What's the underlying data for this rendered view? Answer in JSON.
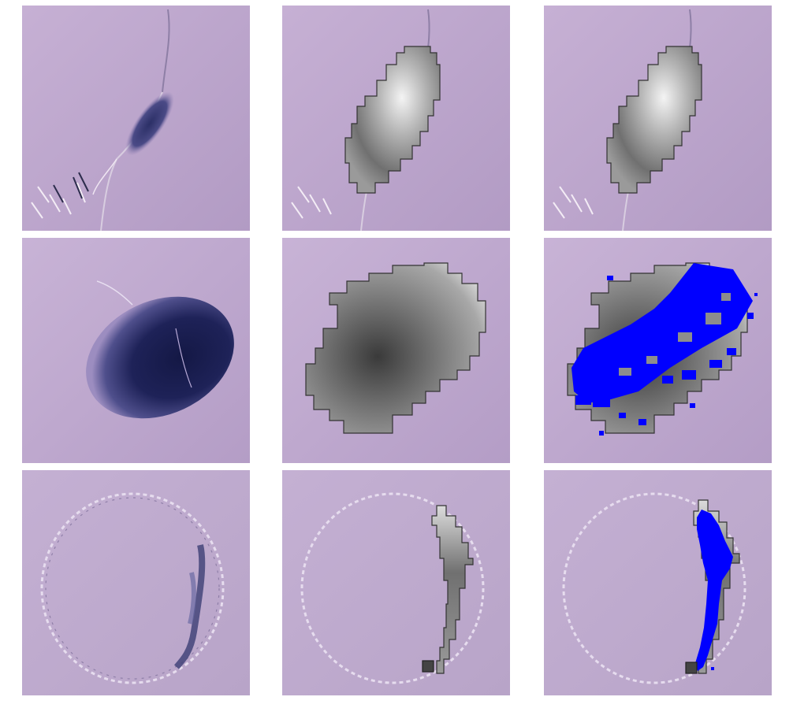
{
  "figure": {
    "rows": [
      {
        "panels": [
          "original",
          "mask-grayscale",
          "mask-grayscale"
        ]
      },
      {
        "panels": [
          "original",
          "mask-grayscale",
          "mask-with-prediction"
        ]
      },
      {
        "panels": [
          "original",
          "mask-grayscale",
          "mask-with-prediction"
        ]
      }
    ]
  },
  "colors": {
    "background_lilac": "#b9a3c9",
    "dark_feature": "#2a2a5e",
    "mask_outline": "#333333",
    "prediction_blue": "#0000ff"
  }
}
